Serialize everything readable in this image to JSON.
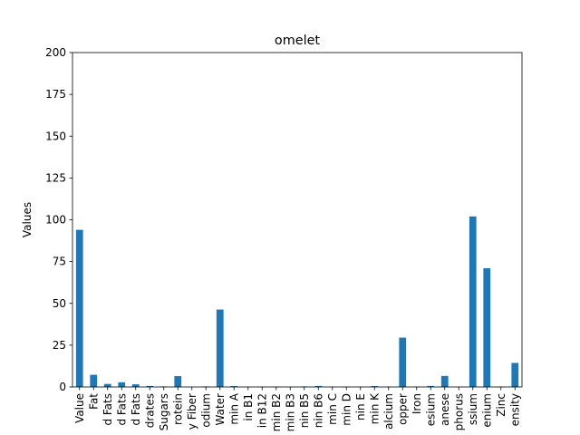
{
  "chart_data": {
    "type": "bar",
    "title": "omelet",
    "xlabel": "",
    "ylabel": "Values",
    "ylim": [
      0,
      200
    ],
    "yticks": [
      0,
      25,
      50,
      75,
      100,
      125,
      150,
      175,
      200
    ],
    "grid": false,
    "legend": "none",
    "bar_color": "#1f77b4",
    "categories": [
      "Value",
      "Fat",
      "d Fats",
      "d Fats",
      "d Fats",
      "drates",
      "Sugars",
      "rotein",
      "y Fiber",
      "odium",
      "Water",
      "min A",
      "in B1",
      "in B12",
      "min B2",
      "min B3",
      "nin B5",
      "nin B6",
      "min C",
      "min D",
      "nin E",
      "min K",
      "alcium",
      "opper",
      "Iron",
      "esium",
      "anese",
      "phorus",
      "ssium",
      "enium",
      "Zinc",
      "ensity"
    ],
    "values": [
      94,
      7.3,
      1.8,
      2.8,
      1.6,
      0.6,
      0.3,
      6.5,
      0,
      0.3,
      46.3,
      0.5,
      0.1,
      0.2,
      0.2,
      0.1,
      0.3,
      0.6,
      0.1,
      0.2,
      0.2,
      0.5,
      0.2,
      29.5,
      0.2,
      0.6,
      6.6,
      0.1,
      102,
      71,
      0.2,
      14.4
    ]
  }
}
